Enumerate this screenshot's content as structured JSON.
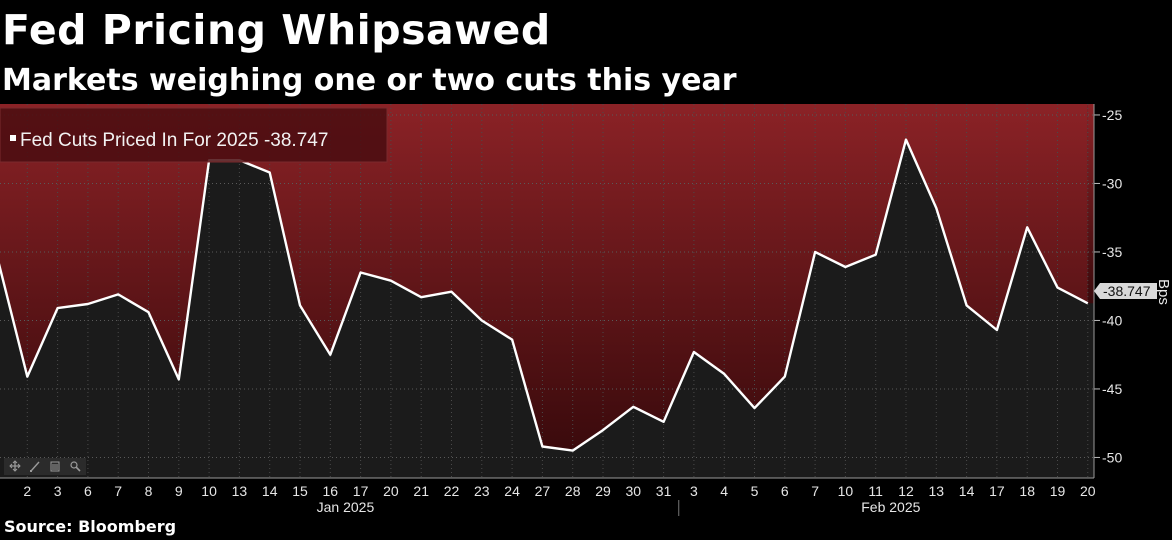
{
  "header": {
    "title": "Fed Pricing Whipsawed",
    "subtitle": "Markets weighing one or two cuts this year"
  },
  "footer": {
    "source": "Source: Bloomberg"
  },
  "colors": {
    "background": "#000000",
    "plot_bg": "#1b1b1b",
    "fill_top": "#8b2226",
    "fill_bottom": "#3a0a0c",
    "line": "#ffffff"
  },
  "toolbar": {
    "icons": [
      "move-icon",
      "draw-line-icon",
      "chart-type-icon",
      "zoom-icon"
    ]
  },
  "chart_data": {
    "type": "line",
    "title": "Fed Pricing Whipsawed",
    "subtitle": "Markets weighing one or two cuts this year",
    "ylabel": "Bps",
    "ylim": [
      -51.5,
      -24.2
    ],
    "yticks": [
      -25,
      -30,
      -35,
      -40,
      -45,
      -50
    ],
    "ytick_labels": [
      "-25",
      "-30",
      "-35",
      "-40",
      "-45",
      "-50"
    ],
    "grid": true,
    "legend": "top-left",
    "x": [
      "1",
      "2",
      "3",
      "6",
      "7",
      "8",
      "9",
      "10",
      "13",
      "14",
      "15",
      "16",
      "17",
      "20",
      "21",
      "22",
      "23",
      "24",
      "27",
      "28",
      "29",
      "30",
      "31",
      "3",
      "4",
      "5",
      "6",
      "7",
      "10",
      "11",
      "12",
      "13",
      "14",
      "17",
      "18",
      "19",
      "20"
    ],
    "xtick_labels": [
      "2",
      "3",
      "6",
      "7",
      "8",
      "9",
      "10",
      "13",
      "14",
      "15",
      "16",
      "17",
      "20",
      "21",
      "22",
      "23",
      "24",
      "27",
      "28",
      "29",
      "30",
      "31",
      "3",
      "4",
      "5",
      "6",
      "7",
      "10",
      "11",
      "12",
      "13",
      "14",
      "17",
      "18",
      "19",
      "20"
    ],
    "month_labels": [
      "Jan 2025",
      "Feb 2025"
    ],
    "series": [
      {
        "name": "Fed Cuts Priced In For 2025",
        "last_value": "-38.747",
        "values": [
          -35.3,
          -44.1,
          -39.1,
          -38.8,
          -38.1,
          -39.4,
          -44.3,
          -28.3,
          -28.3,
          -29.2,
          -38.9,
          -42.5,
          -36.5,
          -37.1,
          -38.3,
          -37.9,
          -40.0,
          -41.4,
          -49.2,
          -49.5,
          -48.0,
          -46.3,
          -47.4,
          -42.3,
          -43.9,
          -46.4,
          -44.1,
          -35.0,
          -36.1,
          -35.2,
          -26.8,
          -31.8,
          -38.9,
          -40.7,
          -33.2,
          -37.6,
          -38.747
        ]
      }
    ]
  }
}
